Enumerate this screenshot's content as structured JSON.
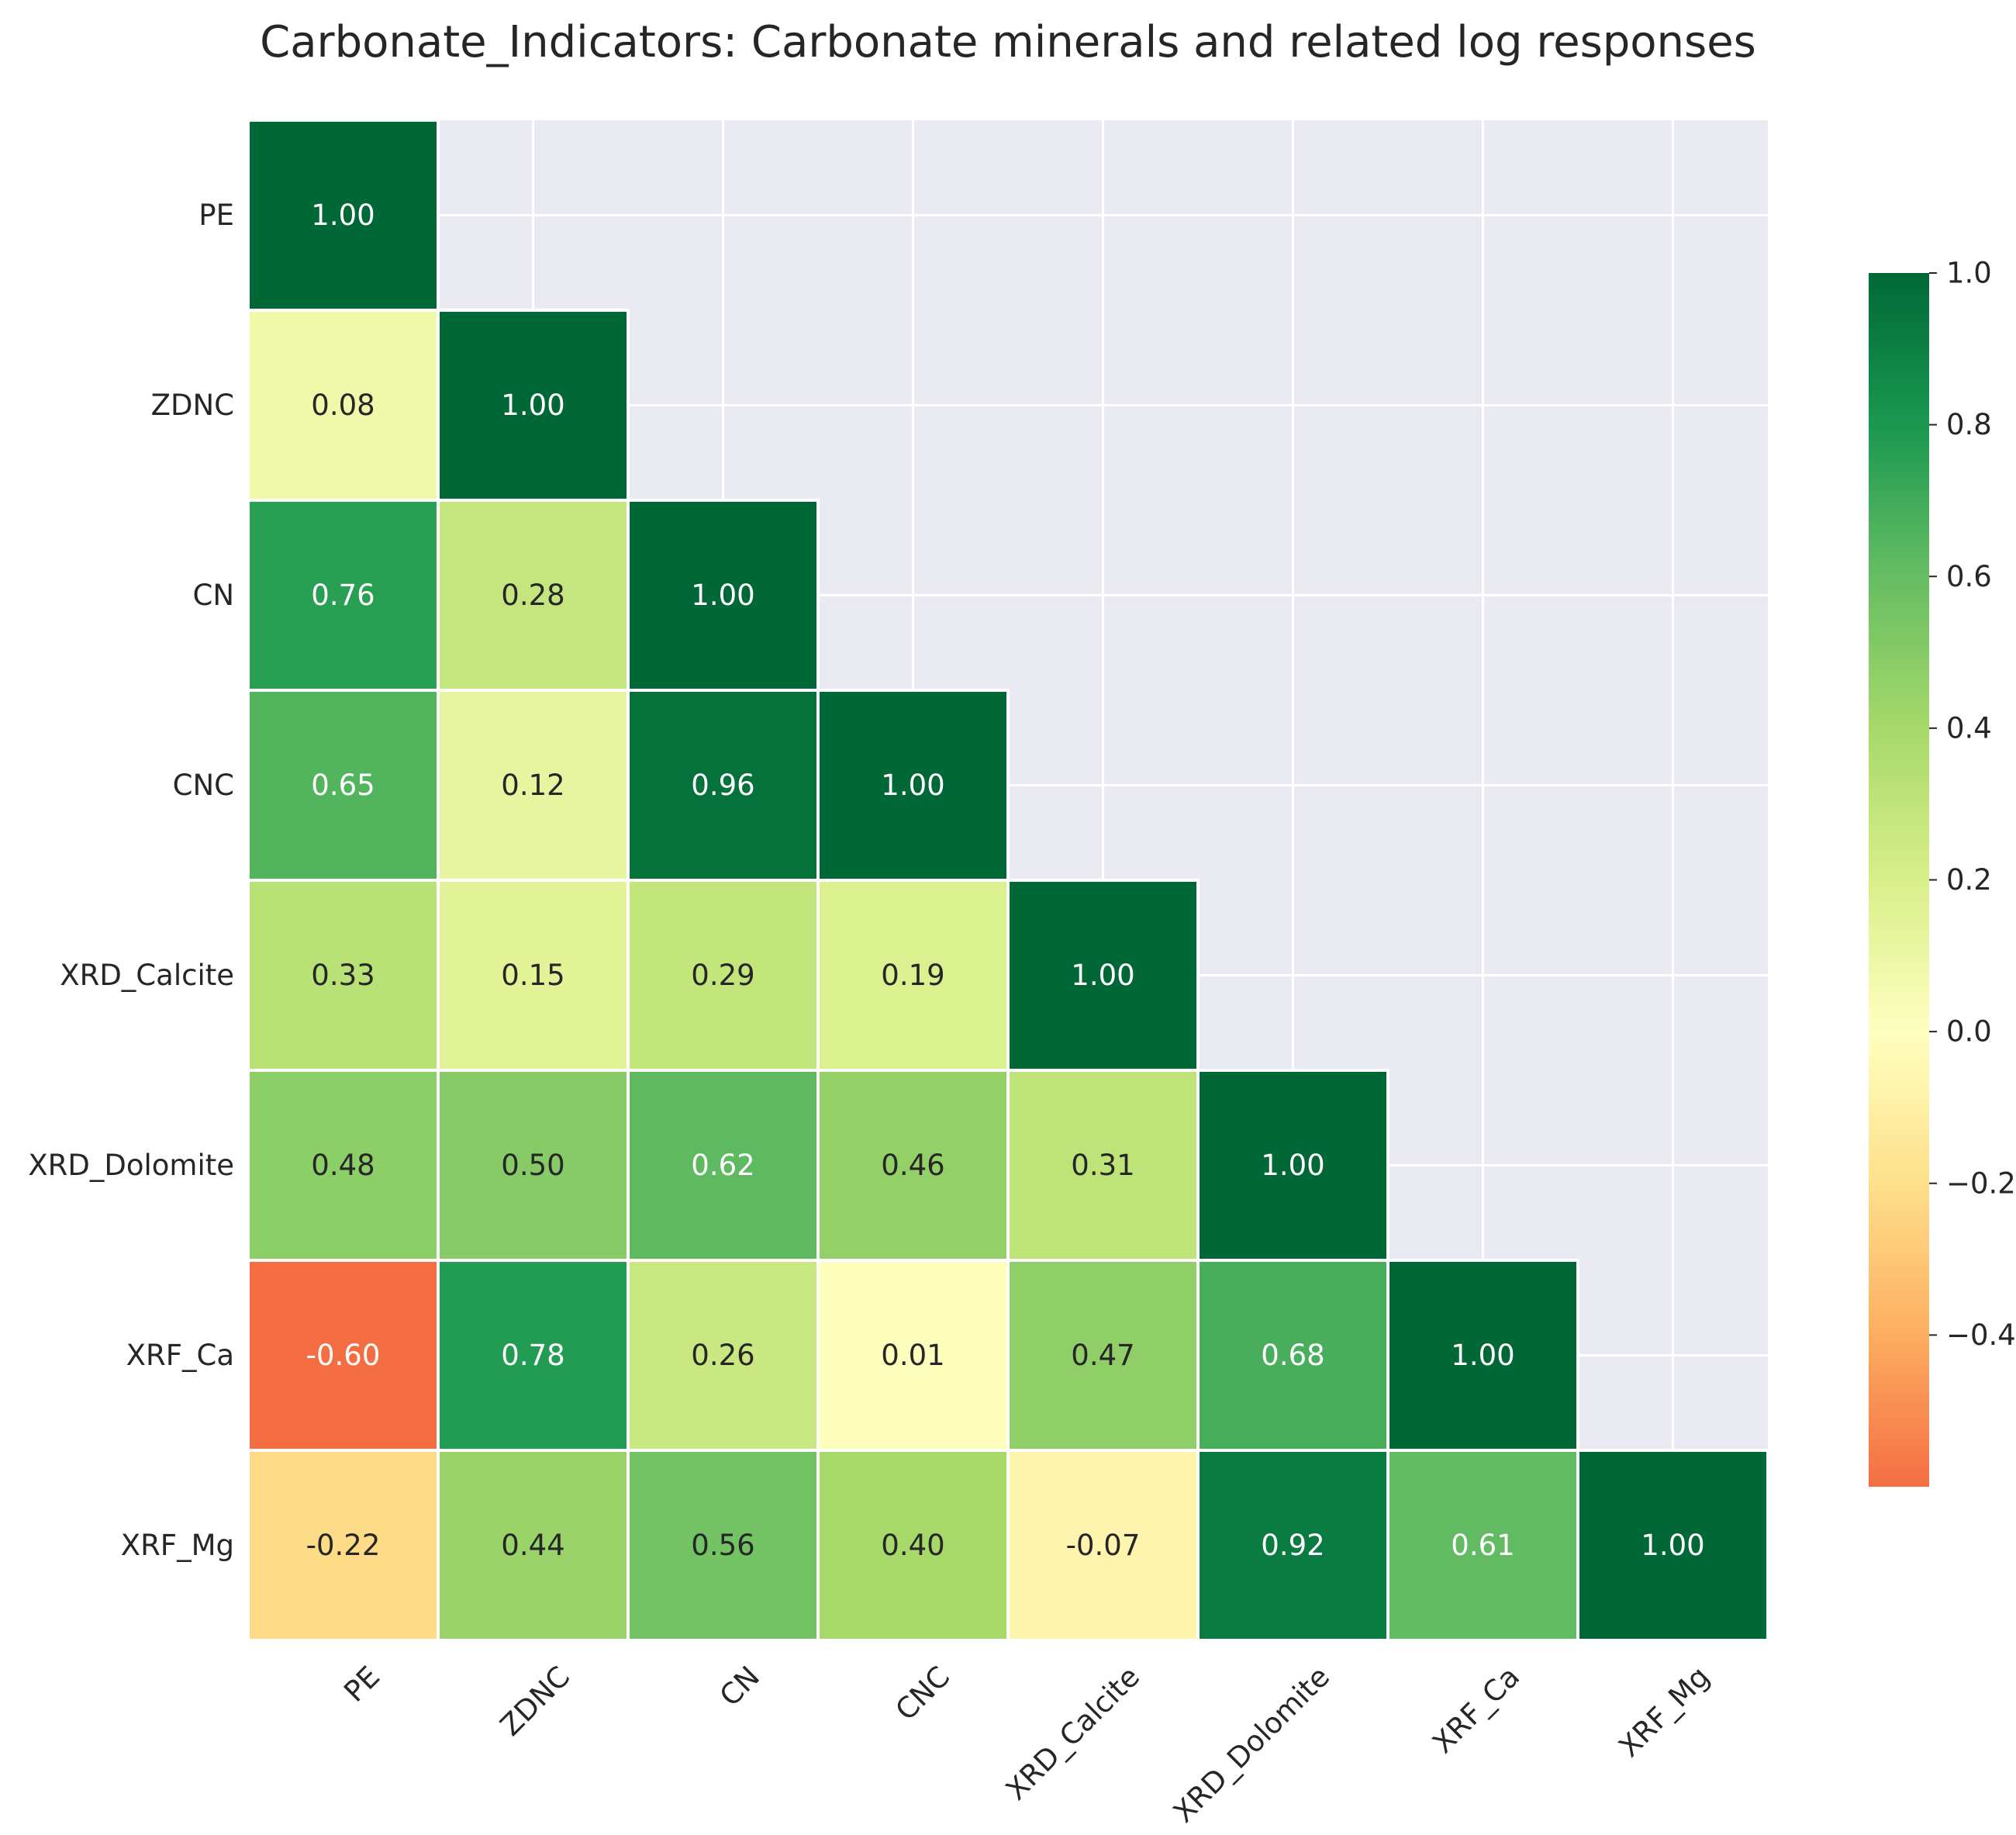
{
  "chart_data": {
    "type": "heatmap",
    "title": "Carbonate_Indicators: Carbonate minerals and related log responses",
    "rows": [
      "PE",
      "ZDNC",
      "CN",
      "CNC",
      "XRD_Calcite",
      "XRD_Dolomite",
      "XRF_Ca",
      "XRF_Mg"
    ],
    "columns": [
      "PE",
      "ZDNC",
      "CN",
      "CNC",
      "XRD_Calcite",
      "XRD_Dolomite",
      "XRF_Ca",
      "XRF_Mg"
    ],
    "values": [
      [
        1.0,
        null,
        null,
        null,
        null,
        null,
        null,
        null
      ],
      [
        0.08,
        1.0,
        null,
        null,
        null,
        null,
        null,
        null
      ],
      [
        0.76,
        0.28,
        1.0,
        null,
        null,
        null,
        null,
        null
      ],
      [
        0.65,
        0.12,
        0.96,
        1.0,
        null,
        null,
        null,
        null
      ],
      [
        0.33,
        0.15,
        0.29,
        0.19,
        1.0,
        null,
        null,
        null
      ],
      [
        0.48,
        0.5,
        0.62,
        0.46,
        0.31,
        1.0,
        null,
        null
      ],
      [
        -0.6,
        0.78,
        0.26,
        0.01,
        0.47,
        0.68,
        1.0,
        null
      ],
      [
        -0.22,
        0.44,
        0.56,
        0.4,
        -0.07,
        0.92,
        0.61,
        1.0
      ]
    ],
    "value_labels": [
      [
        "1.00",
        "",
        "",
        "",
        "",
        "",
        "",
        ""
      ],
      [
        "0.08",
        "1.00",
        "",
        "",
        "",
        "",
        "",
        ""
      ],
      [
        "0.76",
        "0.28",
        "1.00",
        "",
        "",
        "",
        "",
        ""
      ],
      [
        "0.65",
        "0.12",
        "0.96",
        "1.00",
        "",
        "",
        "",
        ""
      ],
      [
        "0.33",
        "0.15",
        "0.29",
        "0.19",
        "1.00",
        "",
        "",
        ""
      ],
      [
        "0.48",
        "0.50",
        "0.62",
        "0.46",
        "0.31",
        "1.00",
        "",
        ""
      ],
      [
        "-0.60",
        "0.78",
        "0.26",
        "0.01",
        "0.47",
        "0.68",
        "1.00",
        ""
      ],
      [
        "-0.22",
        "0.44",
        "0.56",
        "0.40",
        "-0.07",
        "0.92",
        "0.61",
        "1.00"
      ]
    ],
    "masked": "upper triangle (above diagonal)",
    "colormap": "RdYlGn",
    "color_range": [
      -0.6,
      1.0
    ],
    "colorbar": {
      "ticks": [
        1.0,
        0.8,
        0.6,
        0.4,
        0.2,
        0.0,
        -0.2,
        -0.4
      ],
      "tick_labels": [
        "1.0",
        "0.8",
        "0.6",
        "0.4",
        "0.2",
        "0.0",
        "−0.2",
        "−0.4"
      ]
    },
    "grid": true,
    "colors": {
      "masked_background": "#eaeaf2",
      "grid_line": "#ffffff",
      "text_dark": "#262626",
      "text_light": "#ffffff"
    }
  }
}
